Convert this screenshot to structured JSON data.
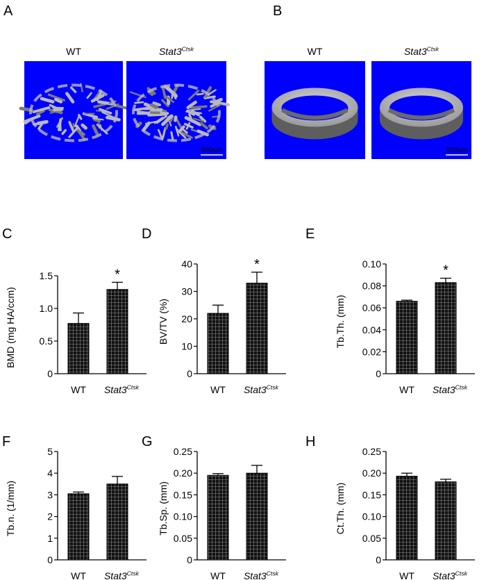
{
  "panels_micro_ct": [
    {
      "letter": "A",
      "labels": [
        "WT",
        "Stat3",
        "Ctsk"
      ],
      "scale_bar": "500µm",
      "kind": "trabecular"
    },
    {
      "letter": "B",
      "labels": [
        "WT",
        "Stat3",
        "Ctsk"
      ],
      "scale_bar": "500µm",
      "kind": "cortical"
    }
  ],
  "colors": {
    "render_bg": "#0000ff",
    "bone": "#b9b9b9",
    "bar_fill": "#111111",
    "grid": "#8a8a8a"
  },
  "chart_data": [
    {
      "letter": "C",
      "type": "bar",
      "categories": [
        "WT",
        "Stat3"
      ],
      "category_superscript": [
        "",
        "Ctsk"
      ],
      "values": [
        0.77,
        1.29
      ],
      "errors": [
        0.16,
        0.11
      ],
      "ylabel": "BMD (mg HA/ccm)",
      "ylim": [
        0,
        1.5
      ],
      "ticks": [
        "0",
        "0.5",
        "1.0",
        "1.5"
      ],
      "significance": [
        "",
        "*"
      ]
    },
    {
      "letter": "D",
      "type": "bar",
      "categories": [
        "WT",
        "Stat3"
      ],
      "category_superscript": [
        "",
        "Ctsk"
      ],
      "values": [
        22,
        33
      ],
      "errors": [
        3,
        4
      ],
      "ylabel": "BV/TV (%)",
      "ylim": [
        0,
        40
      ],
      "ticks": [
        "0",
        "10",
        "20",
        "30",
        "40"
      ],
      "significance": [
        "",
        "*"
      ]
    },
    {
      "letter": "E",
      "type": "bar",
      "categories": [
        "WT",
        "Stat3"
      ],
      "category_superscript": [
        "",
        "Ctsk"
      ],
      "values": [
        0.066,
        0.083
      ],
      "errors": [
        0.001,
        0.004
      ],
      "ylabel": "Tb.Th. (mm)",
      "ylim": [
        0,
        0.1
      ],
      "ticks": [
        "0",
        "0.02",
        "0.04",
        "0.06",
        "0.08",
        "0.10"
      ],
      "significance": [
        "",
        "*"
      ]
    },
    {
      "letter": "F",
      "type": "bar",
      "categories": [
        "WT",
        "Stat3"
      ],
      "category_superscript": [
        "",
        "Ctsk"
      ],
      "values": [
        3.05,
        3.5
      ],
      "errors": [
        0.08,
        0.35
      ],
      "ylabel": "Tb.n. (1/mm)",
      "ylim": [
        0,
        5
      ],
      "ticks": [
        "0",
        "1",
        "2",
        "3",
        "4",
        "5"
      ],
      "significance": [
        "",
        ""
      ]
    },
    {
      "letter": "G",
      "type": "bar",
      "categories": [
        "WT",
        "Stat3"
      ],
      "category_superscript": [
        "",
        "Ctsk"
      ],
      "values": [
        0.195,
        0.2
      ],
      "errors": [
        0.004,
        0.018
      ],
      "ylabel": "Tb.Sp. (mm)",
      "ylim": [
        0,
        0.25
      ],
      "ticks": [
        "0",
        "0.05",
        "0.10",
        "0.15",
        "0.20",
        "0.25"
      ],
      "significance": [
        "",
        ""
      ]
    },
    {
      "letter": "H",
      "type": "bar",
      "categories": [
        "WT",
        "Stat3"
      ],
      "category_superscript": [
        "",
        "Ctsk"
      ],
      "values": [
        0.193,
        0.18
      ],
      "errors": [
        0.007,
        0.006
      ],
      "ylabel": "Ct.Th. (mm)",
      "ylim": [
        0,
        0.25
      ],
      "ticks": [
        "0",
        "0.05",
        "0.10",
        "0.15",
        "0.20",
        "0.25"
      ],
      "significance": [
        "",
        ""
      ]
    }
  ]
}
